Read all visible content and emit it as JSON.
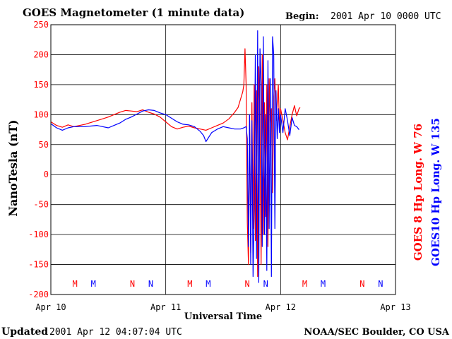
{
  "header": {
    "title": "GOES Magnetometer (1 minute data)",
    "begin_label": "Begin:",
    "begin_value": "2001 Apr 10 0000 UTC"
  },
  "footer": {
    "updated_label": "Updated",
    "updated_value": "2001 Apr 12 04:07:04 UTC",
    "source": "NOAA/SEC Boulder, CO USA"
  },
  "colors": {
    "goes8": "#ff0000",
    "goes10": "#0000ff",
    "axis_label": "#ff0000",
    "grid": "#000000"
  },
  "chart_data": {
    "type": "line",
    "title": "GOES Magnetometer (1 minute data)",
    "xlabel": "Universal Time",
    "ylabel": "NanoTesla (nT)",
    "ylim": [
      -200,
      250
    ],
    "yticks": [
      "250",
      "200",
      "150",
      "100",
      "50",
      "0",
      "-50",
      "-100",
      "-150",
      "-200"
    ],
    "xlim": [
      0,
      3
    ],
    "xtick_values": [
      0,
      1,
      2,
      3
    ],
    "xticks": [
      "Apr 10",
      "Apr 11",
      "Apr 12",
      "Apr 13"
    ],
    "grid": true,
    "legend_position": "right-vertical",
    "markers": {
      "labels": [
        "M",
        "M",
        "N",
        "N",
        "M",
        "M",
        "N",
        "N",
        "M",
        "M",
        "N",
        "N"
      ],
      "x": [
        0.21,
        0.37,
        0.71,
        0.87,
        1.21,
        1.37,
        1.71,
        1.87,
        2.21,
        2.37,
        2.71,
        2.87
      ],
      "series_index": [
        0,
        1,
        0,
        1,
        0,
        1,
        0,
        1,
        0,
        1,
        0,
        1
      ]
    },
    "series": [
      {
        "name": "GOES 8 Hp  Long. W 76",
        "x": [
          0.0,
          0.05,
          0.1,
          0.15,
          0.2,
          0.3,
          0.4,
          0.45,
          0.5,
          0.55,
          0.6,
          0.65,
          0.7,
          0.75,
          0.8,
          0.85,
          0.9,
          0.95,
          1.0,
          1.05,
          1.1,
          1.15,
          1.2,
          1.25,
          1.3,
          1.35,
          1.4,
          1.45,
          1.5,
          1.55,
          1.6,
          1.63,
          1.65,
          1.67,
          1.68,
          1.69,
          1.7,
          1.71,
          1.72,
          1.73,
          1.74,
          1.75,
          1.76,
          1.77,
          1.78,
          1.79,
          1.8,
          1.81,
          1.82,
          1.83,
          1.84,
          1.85,
          1.86,
          1.87,
          1.88,
          1.89,
          1.9,
          1.91,
          1.92,
          1.93,
          1.94,
          1.95,
          1.96,
          1.97,
          1.98,
          1.99,
          2.0,
          2.02,
          2.04,
          2.06,
          2.08,
          2.1,
          2.12,
          2.14,
          2.16,
          2.17
        ],
        "values": [
          88,
          82,
          79,
          83,
          80,
          84,
          90,
          93,
          96,
          100,
          104,
          107,
          106,
          105,
          108,
          104,
          101,
          96,
          88,
          80,
          76,
          79,
          81,
          78,
          76,
          74,
          78,
          82,
          86,
          93,
          104,
          112,
          125,
          138,
          150,
          210,
          150,
          -80,
          -150,
          100,
          -130,
          120,
          -90,
          150,
          -110,
          140,
          -170,
          180,
          100,
          -150,
          200,
          -100,
          120,
          -70,
          150,
          -120,
          160,
          80,
          110,
          -30,
          130,
          160,
          90,
          120,
          150,
          80,
          110,
          90,
          70,
          58,
          80,
          100,
          115,
          98,
          110,
          112
        ]
      },
      {
        "name": "GOES10 Hp  Long. W 135",
        "x": [
          0.0,
          0.05,
          0.1,
          0.15,
          0.2,
          0.3,
          0.4,
          0.45,
          0.5,
          0.55,
          0.6,
          0.65,
          0.7,
          0.75,
          0.8,
          0.85,
          0.9,
          0.95,
          1.0,
          1.05,
          1.1,
          1.15,
          1.2,
          1.25,
          1.3,
          1.33,
          1.35,
          1.4,
          1.45,
          1.5,
          1.55,
          1.6,
          1.65,
          1.68,
          1.7,
          1.71,
          1.72,
          1.73,
          1.74,
          1.75,
          1.76,
          1.77,
          1.78,
          1.79,
          1.8,
          1.81,
          1.82,
          1.83,
          1.84,
          1.85,
          1.86,
          1.87,
          1.88,
          1.89,
          1.9,
          1.91,
          1.92,
          1.93,
          1.94,
          1.95,
          1.96,
          1.97,
          1.98,
          1.99,
          2.0,
          2.02,
          2.04,
          2.06,
          2.08,
          2.1,
          2.12,
          2.14,
          2.16
        ],
        "values": [
          85,
          78,
          74,
          78,
          80,
          80,
          82,
          80,
          78,
          82,
          86,
          92,
          96,
          101,
          106,
          108,
          107,
          103,
          100,
          94,
          88,
          84,
          83,
          80,
          72,
          65,
          55,
          70,
          76,
          80,
          78,
          76,
          76,
          78,
          80,
          60,
          -120,
          100,
          -150,
          90,
          -170,
          -60,
          200,
          -140,
          240,
          -180,
          210,
          150,
          -120,
          230,
          -100,
          100,
          -160,
          190,
          -90,
          160,
          -170,
          230,
          200,
          -90,
          140,
          60,
          110,
          70,
          100,
          70,
          110,
          90,
          65,
          95,
          82,
          80,
          75
        ]
      }
    ]
  }
}
